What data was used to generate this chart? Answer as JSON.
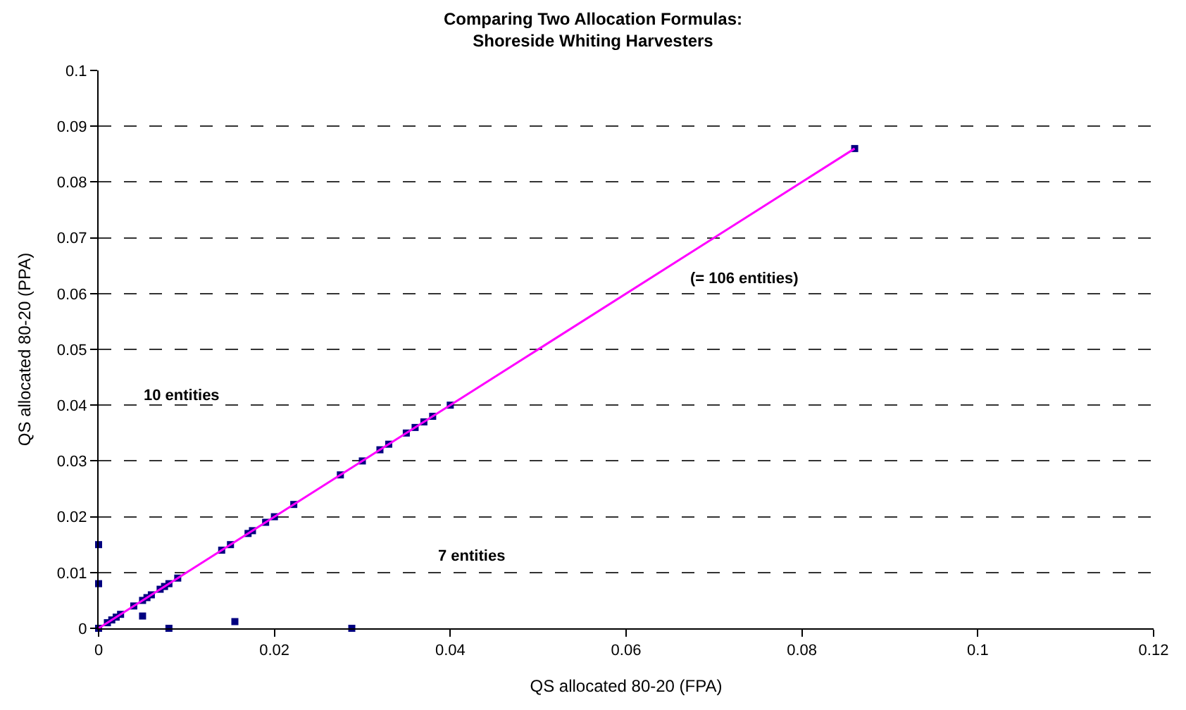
{
  "chart_data": {
    "type": "scatter",
    "title": "Comparing Two Allocation Formulas:\nShoreside Whiting Harvesters",
    "xlabel": "QS allocated 80-20 (FPA)",
    "ylabel": "QS allocated 80-20 (PPA)",
    "series": [
      {
        "color": "#000080",
        "marker": "square",
        "x": [
          0,
          0.0003,
          0.0006,
          0.001,
          0.0015,
          0.002,
          0.0025,
          0.004,
          0.005,
          0.0055,
          0.006,
          0.007,
          0.0075,
          0.008,
          0.009,
          0.014,
          0.015,
          0.017,
          0.0175,
          0.019,
          0.02,
          0.022,
          0.0222,
          0.0275,
          0.03,
          0.032,
          0.033,
          0.035,
          0.036,
          0.037,
          0.038,
          0.04,
          0.086,
          0,
          0,
          0.005,
          0.008,
          0.0155,
          0.0288
        ],
        "values": [
          0,
          null,
          null,
          0.001,
          0.0015,
          0.002,
          0.0025,
          0.004,
          0.005,
          0.0055,
          0.006,
          0.007,
          0.0075,
          0.008,
          0.009,
          0.014,
          0.015,
          0.017,
          0.0175,
          0.019,
          0.02,
          null,
          0.0222,
          0.0275,
          0.03,
          0.032,
          0.033,
          0.035,
          0.036,
          0.037,
          0.038,
          0.04,
          0.086,
          0.015,
          0.008,
          0.0022,
          0,
          0.0012,
          0
        ]
      },
      {
        "type": "line",
        "color": "#ff00ff",
        "marker": "none",
        "line_style": "solid",
        "x": [
          0,
          0.086
        ],
        "values": [
          0,
          0.086
        ]
      }
    ],
    "xlim": [
      0,
      0.12
    ],
    "xticks": [
      0,
      0.02,
      0.04,
      0.06,
      0.08,
      0.1,
      0.12
    ],
    "ylim": [
      0,
      0.1
    ],
    "yticks": [
      0,
      0.01,
      0.02,
      0.03,
      0.04,
      0.05,
      0.06,
      0.07,
      0.08,
      0.09,
      0.1
    ],
    "grid": "y",
    "legend": false,
    "annotations": [
      "10 entities",
      "7 entities",
      "(= 106 entities)"
    ]
  }
}
